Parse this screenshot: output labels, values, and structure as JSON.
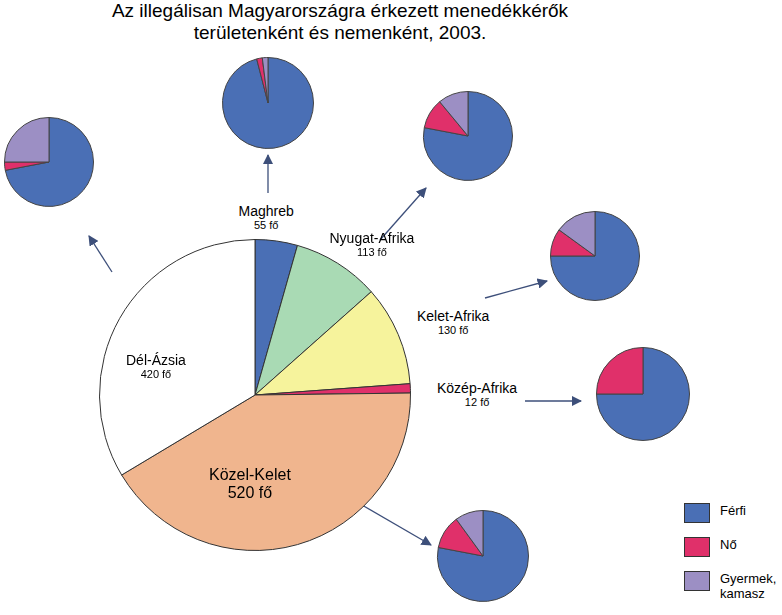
{
  "chart_data": {
    "type": "pie",
    "title": [
      "Az illegálisan Magyarországra érkezett menedékkérők",
      "területenként és nemenként, 2003."
    ],
    "categories": [
      "Maghreb",
      "Nyugat-Afrika",
      "Kelet-Afrika",
      "Közép-Afrika",
      "Közel-Kelet",
      "Dél-Ázsia"
    ],
    "values": [
      55,
      113,
      130,
      12,
      520,
      420
    ],
    "value_labels": [
      "55 fő",
      "113 fő",
      "130 fő",
      "12 fő",
      "520 fő",
      "420 fő"
    ],
    "colors": [
      "#4a6fb5",
      "#a9dab4",
      "#f6f39c",
      "#e0306a",
      "#f0b58e",
      "#ffffff"
    ],
    "data_labels": true,
    "breakdown": {
      "type": "pie",
      "categories": [
        "Maghreb",
        "Nyugat-Afrika",
        "Kelet-Afrika",
        "Közép-Afrika",
        "Közel-Kelet",
        "Dél-Ázsia"
      ],
      "series": [
        {
          "name": "Férfi",
          "color": "#4a6fb5",
          "values": [
            96,
            78,
            75,
            75,
            78,
            72
          ]
        },
        {
          "name": "Nő",
          "color": "#e0306a",
          "values": [
            2,
            11,
            10,
            25,
            12,
            3
          ]
        },
        {
          "name": "Gyermek, kamasz",
          "color": "#9c8fc4",
          "values": [
            2,
            11,
            15,
            0,
            10,
            25
          ]
        }
      ],
      "legend": "lower right"
    }
  }
}
